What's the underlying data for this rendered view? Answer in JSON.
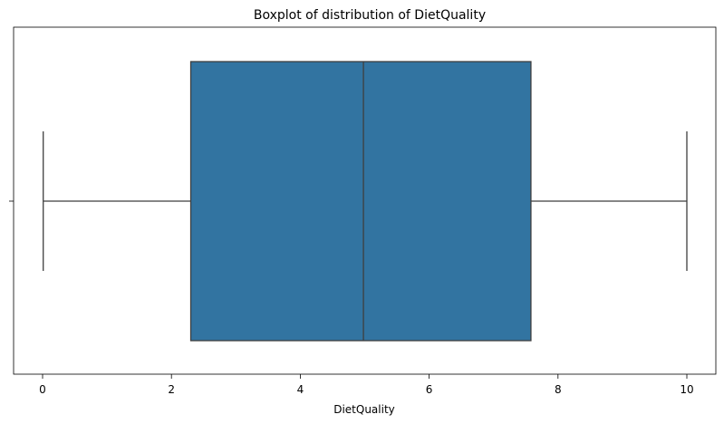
{
  "chart_data": {
    "type": "boxplot",
    "title": "Boxplot of distribution of DietQuality",
    "xlabel": "DietQuality",
    "ylabel": "",
    "xlim": [
      -0.45,
      10.45
    ],
    "xticks": [
      0,
      2,
      4,
      6,
      8,
      10
    ],
    "xtick_labels": [
      "0",
      "2",
      "4",
      "6",
      "8",
      "10"
    ],
    "grid": false,
    "box": {
      "whisker_low": 0.01,
      "q1": 2.3,
      "median": 4.98,
      "q3": 7.58,
      "whisker_high": 10.0
    },
    "colors": {
      "box_fill": "#3274a1",
      "line": "#3f3f3f",
      "axis": "#000000"
    }
  }
}
